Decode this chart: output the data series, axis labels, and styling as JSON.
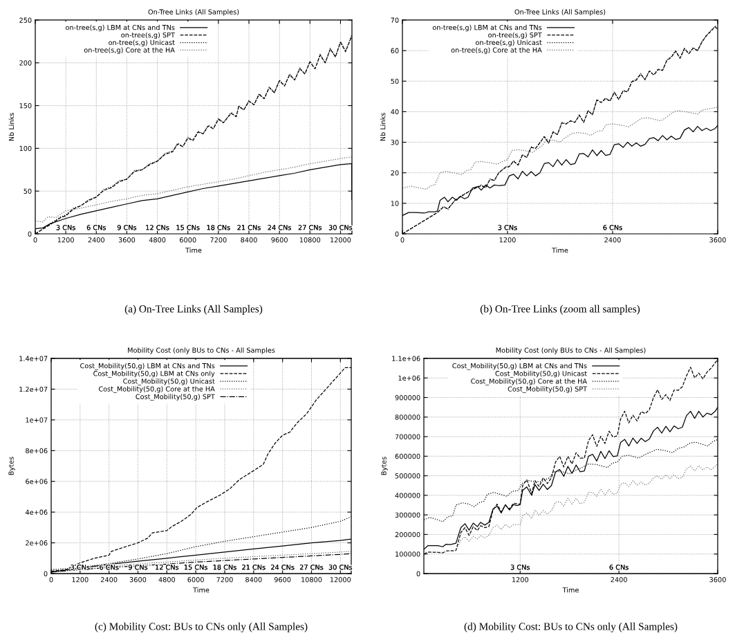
{
  "chart_data": [
    {
      "type": "line",
      "title": "On-Tree Links (All Samples)",
      "xlabel": "Time",
      "ylabel": "Nb Links",
      "xlim": [
        0,
        12450
      ],
      "xticks": [
        0,
        1200,
        2400,
        3600,
        4800,
        6000,
        7200,
        8400,
        9600,
        10800,
        12000
      ],
      "ylim": [
        0,
        250
      ],
      "yticks": [
        0,
        50,
        100,
        150,
        200,
        250
      ],
      "grid": true,
      "legend": "top left",
      "annotations": [
        "(a) On-Tree Links (All Samples)",
        "3 CNs",
        "6 CNs",
        "9 CNs",
        "12 CNs",
        "15 CNs",
        "18 CNs",
        "21 CNs",
        "24 CNs",
        "27 CNs",
        "30 CNs"
      ],
      "series": [
        {
          "name": "on-tree(s,g) LBM at CNs and TNs",
          "color": "#000000",
          "line_style": "solid",
          "x": [
            0,
            300,
            600,
            1200,
            1800,
            2400,
            3000,
            3600,
            4200,
            4800,
            5400,
            6000,
            6600,
            7200,
            7800,
            8400,
            9000,
            9600,
            10200,
            10800,
            11400,
            12000,
            12400,
            12440,
            12445
          ],
          "values": [
            6,
            7,
            12,
            18,
            23,
            27,
            31,
            35,
            39,
            41,
            45,
            49,
            53,
            56,
            59,
            62,
            65,
            68,
            71,
            75,
            78,
            81,
            82,
            82,
            40
          ]
        },
        {
          "name": "on-tree(s,g) SPT",
          "color": "#000000",
          "line_style": "dashed",
          "x": [
            0,
            600,
            1000,
            1200,
            1500,
            1800,
            2100,
            2400,
            2700,
            3000,
            3300,
            3600,
            3900,
            4200,
            4500,
            4800,
            5100,
            5400,
            5600,
            5800,
            6000,
            6200,
            6400,
            6600,
            6800,
            7000,
            7200,
            7400,
            7700,
            7900,
            8000,
            8200,
            8400,
            8600,
            8800,
            9000,
            9200,
            9400,
            9600,
            9800,
            10000,
            10200,
            10400,
            10600,
            10800,
            11000,
            11200,
            11400,
            11600,
            11800,
            12000,
            12200,
            12450
          ],
          "values": [
            0,
            11,
            19,
            21,
            29,
            33,
            39,
            43,
            51,
            54,
            61,
            64,
            73,
            75,
            81,
            85,
            93,
            96,
            105,
            102,
            112,
            109,
            119,
            117,
            126,
            123,
            134,
            130,
            141,
            137,
            149,
            145,
            155,
            151,
            163,
            158,
            171,
            165,
            179,
            173,
            186,
            180,
            193,
            187,
            201,
            193,
            209,
            200,
            216,
            207,
            224,
            213,
            232
          ]
        },
        {
          "name": "on-tree(s,g) Unicast",
          "color": "#000000",
          "line_style": "dotted",
          "x": [
            0,
            600,
            1000,
            1200,
            1500,
            1800,
            2100,
            2400,
            2700,
            3000,
            3300,
            3600,
            3900,
            4200,
            4500,
            4800,
            5100,
            5400,
            5600,
            5800,
            6000,
            6200,
            6400,
            6600,
            6800,
            7000,
            7200,
            7400,
            7700,
            7900,
            8000,
            8200,
            8400,
            8600,
            8800,
            9000,
            9200,
            9400,
            9600,
            9800,
            10000,
            10200,
            10400,
            10600,
            10800,
            11000,
            11200,
            11400,
            11600,
            11800,
            12000,
            12200,
            12450
          ],
          "values": [
            0,
            12,
            20,
            22,
            30,
            33,
            40,
            43,
            52,
            55,
            62,
            64,
            74,
            75,
            82,
            85,
            94,
            97,
            106,
            102,
            113,
            110,
            120,
            117,
            127,
            123,
            135,
            130,
            142,
            137,
            150,
            145,
            156,
            151,
            164,
            158,
            172,
            165,
            180,
            173,
            187,
            180,
            194,
            187,
            202,
            193,
            210,
            200,
            217,
            207,
            225,
            214,
            233
          ]
        },
        {
          "name": "on-tree(s,g) Core at the HA",
          "color": "#666666",
          "line_style": "dotted",
          "x": [
            0,
            300,
            500,
            800,
            1000,
            1200,
            1800,
            2400,
            3000,
            3600,
            4200,
            4800,
            5400,
            6000,
            6600,
            7200,
            7800,
            8400,
            9000,
            9600,
            10200,
            10800,
            11400,
            12000,
            12450
          ],
          "values": [
            15,
            14,
            20,
            19,
            23,
            27,
            30,
            34,
            38,
            41,
            45,
            47,
            51,
            55,
            58,
            61,
            64,
            68,
            72,
            75,
            78,
            82,
            85,
            88,
            90
          ]
        }
      ]
    },
    {
      "type": "line",
      "title": "On-Tree Links (All Samples)",
      "xlabel": "Time",
      "ylabel": "Nb Links",
      "xlim": [
        0,
        3600
      ],
      "xticks": [
        0,
        1200,
        2400,
        3600
      ],
      "ylim": [
        0,
        70
      ],
      "yticks": [
        0,
        10,
        20,
        30,
        40,
        50,
        60,
        70
      ],
      "grid": true,
      "legend": "top left",
      "annotations": [
        "(b) On-Tree Links (zoom all samples)",
        "3 CNs",
        "6 CNs"
      ],
      "series": [
        {
          "name": "on-tree(s,g) LBM at CNs and TNs",
          "color": "#000000",
          "line_style": "solid",
          "x": [
            0,
            70,
            150,
            250,
            300,
            370,
            400,
            430,
            480,
            520,
            570,
            620,
            660,
            710,
            750,
            800,
            860,
            900,
            950,
            1000,
            1050,
            1100,
            1170,
            1220,
            1270,
            1320,
            1370,
            1420,
            1470,
            1520,
            1570,
            1620,
            1670,
            1720,
            1770,
            1820,
            1870,
            1920,
            1970,
            2020,
            2070,
            2120,
            2170,
            2220,
            2270,
            2320,
            2370,
            2420,
            2470,
            2520,
            2570,
            2620,
            2670,
            2720,
            2770,
            2820,
            2870,
            2920,
            2970,
            3020,
            3070,
            3120,
            3170,
            3220,
            3270,
            3320,
            3370,
            3420,
            3470,
            3520,
            3570,
            3600
          ],
          "values": [
            6,
            7,
            7,
            6.8,
            7.2,
            7.2,
            7.5,
            11,
            12,
            10.5,
            12,
            11,
            12.3,
            11.5,
            12,
            15,
            15.5,
            14.3,
            16,
            15,
            16,
            15.8,
            16,
            19,
            19.5,
            18,
            20.5,
            19,
            20.4,
            19,
            20,
            23,
            23.3,
            22,
            24.3,
            22.5,
            24.3,
            22.7,
            23,
            26.2,
            26.3,
            25.2,
            27.5,
            25.6,
            27.3,
            25.7,
            26,
            29.2,
            29.5,
            28.3,
            30,
            28.7,
            29.8,
            28.7,
            29.3,
            31.2,
            31.5,
            30.5,
            32.2,
            30.8,
            32,
            30.9,
            31.3,
            34,
            34.8,
            33.4,
            35.2,
            33.8,
            34.6,
            33.8,
            34.5,
            35.5
          ]
        },
        {
          "name": "on-tree(s,g) SPT",
          "color": "#000000",
          "line_style": "dashed",
          "x": [
            0,
            400,
            470,
            520,
            600,
            700,
            800,
            900,
            950,
            1000,
            1050,
            1100,
            1180,
            1220,
            1270,
            1320,
            1370,
            1420,
            1470,
            1520,
            1570,
            1620,
            1670,
            1720,
            1770,
            1820,
            1870,
            1920,
            1970,
            2020,
            2070,
            2120,
            2170,
            2220,
            2270,
            2320,
            2370,
            2420,
            2470,
            2520,
            2570,
            2620,
            2670,
            2720,
            2770,
            2820,
            2870,
            2920,
            2970,
            3020,
            3070,
            3120,
            3170,
            3220,
            3270,
            3320,
            3370,
            3420,
            3470,
            3570,
            3600
          ],
          "values": [
            0,
            7,
            8.8,
            8.2,
            11,
            12.8,
            14.5,
            15.8,
            15.2,
            17.8,
            17.5,
            20,
            21.8,
            22,
            23.8,
            22.5,
            25.8,
            25,
            28.3,
            28,
            29.8,
            31.8,
            29.8,
            33.3,
            32.5,
            36.3,
            36,
            37,
            36.5,
            38.8,
            36.5,
            40.3,
            39,
            43.8,
            43,
            44.3,
            43.5,
            46.3,
            44,
            46.8,
            46.5,
            49.8,
            50.3,
            52.3,
            50.5,
            53.3,
            52,
            53.8,
            53.5,
            56.8,
            57.8,
            59.8,
            57.5,
            60.6,
            59,
            60.8,
            60,
            62.8,
            64.8,
            67.8,
            67
          ]
        },
        {
          "name": "on-tree(s,g) Unicast",
          "color": "#000000",
          "line_style": "dotted",
          "x": [
            0,
            400,
            470,
            520,
            600,
            700,
            800,
            900,
            950,
            1000,
            1050,
            1100,
            1180,
            1220,
            1270,
            1320,
            1370,
            1420,
            1470,
            1520,
            1570,
            1620,
            1670,
            1720,
            1770,
            1820,
            1870,
            1920,
            1970,
            2020,
            2070,
            2120,
            2170,
            2220,
            2270,
            2320,
            2370,
            2420,
            2470,
            2520,
            2570,
            2620,
            2670,
            2720,
            2770,
            2820,
            2870,
            2920,
            2970,
            3020,
            3070,
            3120,
            3170,
            3220,
            3270,
            3320,
            3370,
            3420,
            3470,
            3570,
            3600
          ],
          "values": [
            0,
            7,
            9,
            8,
            11,
            13,
            14.5,
            16,
            15,
            18,
            17.5,
            20,
            22,
            22,
            24,
            22.5,
            26,
            25,
            28.5,
            28,
            30,
            32,
            29.5,
            33.5,
            32.5,
            36.5,
            36,
            37,
            36.5,
            39,
            36.5,
            40.5,
            39,
            44,
            43,
            44.5,
            43.5,
            46.5,
            44,
            47,
            46.5,
            50,
            50.5,
            52.5,
            50.5,
            53.5,
            52,
            54,
            53.5,
            57,
            58,
            60,
            57.5,
            60.8,
            59,
            61,
            60,
            63,
            65,
            68,
            67
          ]
        },
        {
          "name": "on-tree(s,g) Core at the HA",
          "color": "#666666",
          "line_style": "dotted",
          "x": [
            0,
            100,
            200,
            270,
            330,
            370,
            430,
            500,
            580,
            680,
            730,
            780,
            830,
            900,
            1000,
            1080,
            1150,
            1200,
            1250,
            1320,
            1450,
            1480,
            1550,
            1600,
            1650,
            1750,
            1800,
            1850,
            1930,
            2000,
            2100,
            2150,
            2220,
            2280,
            2330,
            2400,
            2520,
            2580,
            2650,
            2730,
            2800,
            2880,
            2950,
            3020,
            3100,
            3150,
            3270,
            3370,
            3420,
            3600
          ],
          "values": [
            15,
            15.6,
            15,
            14.6,
            15.8,
            16,
            20,
            20.5,
            20,
            19.4,
            20.7,
            21,
            23.5,
            23.7,
            23.3,
            22.8,
            23.8,
            24.3,
            27.3,
            27.6,
            27,
            26.6,
            28,
            29,
            31,
            30.5,
            30,
            31.3,
            32.8,
            33.2,
            32.8,
            32.2,
            33.5,
            33.8,
            35.8,
            36,
            35.5,
            35,
            36.3,
            37.8,
            38,
            37.5,
            37,
            38.3,
            40,
            40.3,
            39.8,
            39.2,
            40.5,
            41.5
          ]
        }
      ]
    },
    {
      "type": "line",
      "title": "Mobility Cost (only BUs to CNs - All Samples",
      "xlabel": "Time",
      "ylabel": "Bytes",
      "xlim": [
        0,
        12450
      ],
      "xticks": [
        0,
        1200,
        2400,
        3600,
        4800,
        6000,
        7200,
        8400,
        9600,
        10800,
        12000
      ],
      "ylim": [
        0,
        14000000
      ],
      "yticks": [
        0,
        {
          "value": 2000000,
          "label": "2e+06"
        },
        {
          "value": 4000000,
          "label": "4e+06"
        },
        {
          "value": 6000000,
          "label": "6e+06"
        },
        {
          "value": 8000000,
          "label": "8e+06"
        },
        {
          "value": 10000000,
          "label": "1e+07"
        },
        {
          "value": 12000000,
          "label": "1.2e+07"
        },
        {
          "value": 14000000,
          "label": "1.4e+07"
        }
      ],
      "grid": true,
      "legend": "top left",
      "annotations": [
        "(c) Mobility Cost: BUs to CNs only (All Samples)",
        "3 CNs",
        "6 CNs",
        "9 CNs",
        "12 CNs",
        "15 CNs",
        "18 CNs",
        "21 CNs",
        "24 CNs",
        "27 CNs",
        "30 CNs"
      ],
      "series": [
        {
          "name": "Cost_Mobility(50,g) LBM at CNs and TNs",
          "color": "#000000",
          "line_style": "solid",
          "x": [
            0,
            1200,
            2400,
            3600,
            4800,
            6000,
            7200,
            8400,
            9600,
            10800,
            12000,
            12450
          ],
          "values": [
            100000,
            350000,
            600000,
            800000,
            1000000,
            1200000,
            1400000,
            1600000,
            1800000,
            2000000,
            2150000,
            2250000
          ]
        },
        {
          "name": "Cost_Mobility(50,g) LBM at CNs only",
          "color": "#000000",
          "line_style": "dashed",
          "x": [
            0,
            600,
            1200,
            1800,
            2400,
            2500,
            3000,
            3600,
            4000,
            4200,
            4800,
            5000,
            5400,
            5800,
            6050,
            6500,
            7000,
            7400,
            7800,
            8200,
            8500,
            8800,
            9000,
            9300,
            9600,
            9900,
            10200,
            10600,
            11000,
            11400,
            11800,
            12200,
            12450
          ],
          "values": [
            150000,
            250000,
            700000,
            1000000,
            1200000,
            1450000,
            1700000,
            2000000,
            2300000,
            2650000,
            2800000,
            3050000,
            3400000,
            3850000,
            4300000,
            4700000,
            5100000,
            5500000,
            6100000,
            6500000,
            6800000,
            7100000,
            7800000,
            8500000,
            9000000,
            9200000,
            9800000,
            10400000,
            11300000,
            12000000,
            12700000,
            13400000,
            13400000
          ]
        },
        {
          "name": "Cost_Mobility(50,g) Unicast",
          "color": "#000000",
          "line_style": "dotted",
          "x": [
            0,
            1200,
            2400,
            3600,
            4800,
            6000,
            7200,
            8400,
            9600,
            10800,
            12000,
            12450
          ],
          "values": [
            250000,
            400000,
            650000,
            950000,
            1300000,
            1750000,
            2100000,
            2400000,
            2700000,
            3000000,
            3400000,
            3700000
          ]
        },
        {
          "name": "Cost_Mobility(50,g) Core at the HA",
          "color": "#666666",
          "line_style": "dotted",
          "x": [
            0,
            1200,
            2400,
            3600,
            4800,
            6000,
            7200,
            8400,
            9600,
            10800,
            12000,
            12450
          ],
          "values": [
            250000,
            350000,
            500000,
            630000,
            750000,
            880000,
            1000000,
            1100000,
            1200000,
            1300000,
            1400000,
            1450000
          ]
        },
        {
          "name": "Cost_Mobility(50,g) SPT",
          "color": "#000000",
          "line_style": "dashdot",
          "x": [
            0,
            1200,
            2400,
            3600,
            4800,
            6000,
            7200,
            8400,
            9600,
            10800,
            12000,
            12450
          ],
          "values": [
            100000,
            250000,
            400000,
            500000,
            620000,
            750000,
            850000,
            950000,
            1050000,
            1150000,
            1250000,
            1300000
          ]
        }
      ]
    },
    {
      "type": "line",
      "title": "Mobility Cost (only BUs to CNs - All Samples)",
      "xlabel": "Time",
      "ylabel": "Bytes",
      "xlim": [
        30,
        3600
      ],
      "xticks": [
        1200,
        2400,
        3600
      ],
      "ylim": [
        0,
        1100000
      ],
      "yticks": [
        0,
        100000,
        200000,
        300000,
        400000,
        500000,
        600000,
        700000,
        800000,
        900000,
        {
          "value": 1000000,
          "label": "1e+06"
        },
        {
          "value": 1100000,
          "label": "1.1e+06"
        }
      ],
      "grid": true,
      "legend": "top left",
      "annotations": [
        "(d) Mobility Cost: BUs to CNs only (All Samples)",
        "3 CNs",
        "6 CNs"
      ],
      "series": [
        {
          "name": "Cost_Mobility(50,g) LBM at CNs and TNs",
          "color": "#000000",
          "line_style": "solid",
          "x": [
            33,
            80,
            200,
            260,
            300,
            350,
            420,
            480,
            530,
            580,
            630,
            680,
            720,
            770,
            820,
            870,
            920,
            970,
            1020,
            1070,
            1120,
            1160,
            1200,
            1230,
            1280,
            1340,
            1380,
            1430,
            1480,
            1530,
            1580,
            1630,
            1680,
            1730,
            1780,
            1830,
            1880,
            1930,
            1980,
            2030,
            2080,
            2130,
            2180,
            2230,
            2280,
            2330,
            2380,
            2420,
            2470,
            2520,
            2570,
            2620,
            2670,
            2720,
            2770,
            2820,
            2870,
            2920,
            2970,
            3020,
            3070,
            3120,
            3170,
            3220,
            3270,
            3320,
            3370,
            3420,
            3470,
            3520,
            3570,
            3600
          ],
          "values": [
            125000,
            143000,
            143000,
            137000,
            150000,
            148000,
            155000,
            235000,
            255000,
            222000,
            258000,
            240000,
            262000,
            248000,
            262000,
            330000,
            345000,
            310000,
            352000,
            325000,
            353000,
            348000,
            352000,
            425000,
            443000,
            400000,
            455000,
            425000,
            457000,
            430000,
            450000,
            520000,
            532000,
            497000,
            548000,
            512000,
            555000,
            520000,
            525000,
            600000,
            610000,
            575000,
            625000,
            588000,
            628000,
            598000,
            602000,
            670000,
            686000,
            652000,
            693000,
            665000,
            692000,
            675000,
            688000,
            730000,
            748000,
            718000,
            753000,
            725000,
            755000,
            740000,
            748000,
            807000,
            830000,
            793000,
            830000,
            800000,
            820000,
            812000,
            830000,
            850000
          ]
        },
        {
          "name": "Cost_Mobility(50,g) Unicast",
          "color": "#000000",
          "line_style": "dashed",
          "x": [
            33,
            80,
            200,
            260,
            300,
            420,
            480,
            530,
            580,
            630,
            680,
            720,
            770,
            820,
            870,
            920,
            970,
            1020,
            1070,
            1120,
            1200,
            1230,
            1280,
            1340,
            1380,
            1430,
            1480,
            1530,
            1580,
            1630,
            1680,
            1730,
            1780,
            1830,
            1880,
            1930,
            1980,
            2030,
            2080,
            2130,
            2180,
            2230,
            2280,
            2330,
            2380,
            2420,
            2470,
            2520,
            2570,
            2620,
            2670,
            2720,
            2770,
            2820,
            2870,
            2920,
            2970,
            3020,
            3070,
            3120,
            3170,
            3220,
            3270,
            3320,
            3370,
            3420,
            3470,
            3520,
            3600
          ],
          "values": [
            100000,
            110000,
            108000,
            106000,
            115000,
            118000,
            210000,
            235000,
            195000,
            240000,
            220000,
            245000,
            235000,
            240000,
            325000,
            355000,
            315000,
            350000,
            330000,
            360000,
            355000,
            450000,
            480000,
            410000,
            475000,
            445000,
            490000,
            460000,
            490000,
            570000,
            600000,
            545000,
            600000,
            560000,
            618000,
            590000,
            590000,
            680000,
            710000,
            650000,
            702000,
            665000,
            728000,
            697000,
            705000,
            790000,
            830000,
            770000,
            810000,
            780000,
            828000,
            818000,
            838000,
            900000,
            940000,
            890000,
            915000,
            885000,
            938000,
            937000,
            955000,
            1010000,
            1055000,
            1000000,
            1025000,
            995000,
            1030000,
            1050000,
            1095000
          ]
        },
        {
          "name": "Cost_Mobility(50,g) Core at the HA",
          "color": "#000000",
          "line_style": "dotted",
          "x": [
            33,
            100,
            200,
            260,
            320,
            380,
            420,
            500,
            580,
            640,
            700,
            760,
            800,
            880,
            960,
            1040,
            1100,
            1180,
            1220,
            1300,
            1400,
            1460,
            1500,
            1560,
            1600,
            1700,
            1800,
            1860,
            1940,
            2030,
            2120,
            2260,
            2320,
            2380,
            2440,
            2520,
            2640,
            2700,
            2780,
            2860,
            2950,
            3050,
            3120,
            3200,
            3250,
            3330,
            3420,
            3480,
            3540,
            3600
          ],
          "values": [
            275000,
            287000,
            275000,
            265000,
            290000,
            295000,
            350000,
            362000,
            355000,
            342000,
            362000,
            370000,
            405000,
            415000,
            405000,
            395000,
            420000,
            425000,
            460000,
            475000,
            470000,
            470000,
            480000,
            490000,
            520000,
            522000,
            510000,
            525000,
            540000,
            560000,
            558000,
            542000,
            565000,
            570000,
            600000,
            605000,
            590000,
            605000,
            620000,
            635000,
            630000,
            618000,
            640000,
            648000,
            665000,
            672000,
            660000,
            652000,
            675000,
            685000
          ]
        },
        {
          "name": "Cost_Mobility(50,g) SPT",
          "color": "#777777",
          "line_style": "dotted",
          "x": [
            33,
            80,
            200,
            260,
            300,
            420,
            480,
            530,
            580,
            630,
            680,
            720,
            770,
            820,
            870,
            920,
            970,
            1020,
            1070,
            1120,
            1200,
            1230,
            1280,
            1340,
            1380,
            1430,
            1480,
            1530,
            1580,
            1630,
            1680,
            1730,
            1780,
            1830,
            1880,
            1930,
            1980,
            2030,
            2080,
            2130,
            2180,
            2230,
            2280,
            2330,
            2380,
            2420,
            2470,
            2520,
            2570,
            2620,
            2670,
            2720,
            2770,
            2820,
            2870,
            2920,
            2970,
            3020,
            3070,
            3120,
            3170,
            3220,
            3270,
            3320,
            3370,
            3420,
            3470,
            3520,
            3600
          ],
          "values": [
            95000,
            108000,
            110000,
            108000,
            115000,
            118000,
            170000,
            188000,
            165000,
            190000,
            178000,
            193000,
            183000,
            195000,
            235000,
            248000,
            225000,
            252000,
            235000,
            250000,
            250000,
            295000,
            310000,
            282000,
            325000,
            298000,
            322000,
            305000,
            320000,
            365000,
            368000,
            345000,
            385000,
            355000,
            385000,
            357000,
            365000,
            415000,
            415000,
            395000,
            432000,
            402000,
            430000,
            405000,
            412000,
            457000,
            465000,
            445000,
            475000,
            452000,
            468000,
            452000,
            462000,
            490000,
            500000,
            482000,
            505000,
            485000,
            505000,
            485000,
            492000,
            535000,
            550000,
            525000,
            552000,
            530000,
            545000,
            530000,
            560000
          ]
        }
      ]
    }
  ]
}
